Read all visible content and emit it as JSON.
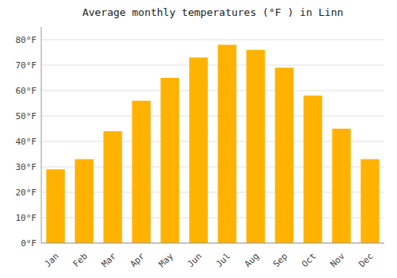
{
  "chart_data": {
    "type": "bar",
    "title": "Average monthly temperatures (°F ) in Linn",
    "categories": [
      "Jan",
      "Feb",
      "Mar",
      "Apr",
      "May",
      "Jun",
      "Jul",
      "Aug",
      "Sep",
      "Oct",
      "Nov",
      "Dec"
    ],
    "values": [
      29,
      33,
      44,
      56,
      65,
      73,
      78,
      76,
      69,
      58,
      45,
      33
    ],
    "color": "#FFB300",
    "ylim": [
      0,
      85
    ],
    "yticks": [
      {
        "value": 0,
        "label": "0°F"
      },
      {
        "value": 10,
        "label": "10°F"
      },
      {
        "value": 20,
        "label": "20°F"
      },
      {
        "value": 30,
        "label": "30°F"
      },
      {
        "value": 40,
        "label": "40°F"
      },
      {
        "value": 50,
        "label": "50°F"
      },
      {
        "value": 60,
        "label": "60°F"
      },
      {
        "value": 70,
        "label": "70°F"
      },
      {
        "value": 80,
        "label": "80°F"
      }
    ],
    "grid": true
  }
}
